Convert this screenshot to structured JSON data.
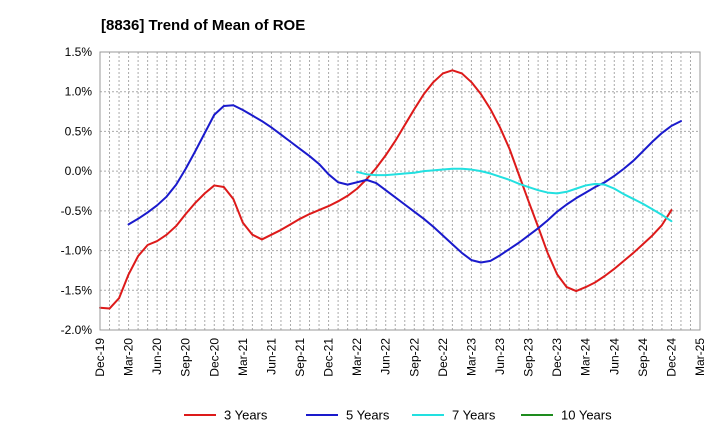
{
  "chart_data": {
    "type": "line",
    "title": "[8836]  Trend of Mean of ROE",
    "xlabel": "",
    "ylabel": "",
    "x_ticks": [
      "Dec-19",
      "Mar-20",
      "Jun-20",
      "Sep-20",
      "Dec-20",
      "Mar-21",
      "Jun-21",
      "Sep-21",
      "Dec-21",
      "Mar-22",
      "Jun-22",
      "Sep-22",
      "Dec-22",
      "Mar-23",
      "Jun-23",
      "Sep-23",
      "Dec-23",
      "Mar-24",
      "Jun-24",
      "Sep-24",
      "Dec-24",
      "Mar-25"
    ],
    "y_ticks": [
      1.5,
      1.0,
      0.5,
      0.0,
      -0.5,
      -1.0,
      -1.5,
      -2.0
    ],
    "y_tick_labels": [
      "1.5%",
      "1.0%",
      "0.5%",
      "0.0%",
      "-0.5%",
      "-1.0%",
      "-1.5%",
      "-2.0%"
    ],
    "ylim": [
      -2.0,
      1.5
    ],
    "grid": true,
    "legend_position": "bottom",
    "series": [
      {
        "name": "3 Years",
        "color": "#dd1a1a",
        "points": [
          [
            "Dec-19",
            -1.72
          ],
          [
            "Jan-20",
            -1.73
          ],
          [
            "Feb-20",
            -1.6
          ],
          [
            "Mar-20",
            -1.3
          ],
          [
            "Apr-20",
            -1.07
          ],
          [
            "May-20",
            -0.93
          ],
          [
            "Jun-20",
            -0.88
          ],
          [
            "Jul-20",
            -0.8
          ],
          [
            "Aug-20",
            -0.69
          ],
          [
            "Sep-20",
            -0.54
          ],
          [
            "Oct-20",
            -0.4
          ],
          [
            "Nov-20",
            -0.28
          ],
          [
            "Dec-20",
            -0.18
          ],
          [
            "Jan-21",
            -0.2
          ],
          [
            "Feb-21",
            -0.35
          ],
          [
            "Mar-21",
            -0.65
          ],
          [
            "Apr-21",
            -0.8
          ],
          [
            "May-21",
            -0.86
          ],
          [
            "Jun-21",
            -0.8
          ],
          [
            "Jul-21",
            -0.74
          ],
          [
            "Aug-21",
            -0.67
          ],
          [
            "Sep-21",
            -0.6
          ],
          [
            "Oct-21",
            -0.54
          ],
          [
            "Nov-21",
            -0.49
          ],
          [
            "Dec-21",
            -0.44
          ],
          [
            "Jan-22",
            -0.38
          ],
          [
            "Feb-22",
            -0.31
          ],
          [
            "Mar-22",
            -0.22
          ],
          [
            "Apr-22",
            -0.1
          ],
          [
            "May-22",
            0.04
          ],
          [
            "Jun-22",
            0.2
          ],
          [
            "Jul-22",
            0.38
          ],
          [
            "Aug-22",
            0.58
          ],
          [
            "Sep-22",
            0.78
          ],
          [
            "Oct-22",
            0.97
          ],
          [
            "Nov-22",
            1.12
          ],
          [
            "Dec-22",
            1.23
          ],
          [
            "Jan-23",
            1.27
          ],
          [
            "Feb-23",
            1.23
          ],
          [
            "Mar-23",
            1.12
          ],
          [
            "Apr-23",
            0.97
          ],
          [
            "May-23",
            0.78
          ],
          [
            "Jun-23",
            0.55
          ],
          [
            "Jul-23",
            0.28
          ],
          [
            "Aug-23",
            -0.05
          ],
          [
            "Sep-23",
            -0.38
          ],
          [
            "Oct-23",
            -0.7
          ],
          [
            "Nov-23",
            -1.03
          ],
          [
            "Dec-23",
            -1.3
          ],
          [
            "Jan-24",
            -1.46
          ],
          [
            "Feb-24",
            -1.51
          ],
          [
            "Mar-24",
            -1.46
          ],
          [
            "Apr-24",
            -1.4
          ],
          [
            "May-24",
            -1.32
          ],
          [
            "Jun-24",
            -1.23
          ],
          [
            "Jul-24",
            -1.13
          ],
          [
            "Aug-24",
            -1.03
          ],
          [
            "Sep-24",
            -0.92
          ],
          [
            "Oct-24",
            -0.81
          ],
          [
            "Nov-24",
            -0.68
          ],
          [
            "Dec-24",
            -0.49
          ]
        ]
      },
      {
        "name": "5 Years",
        "color": "#1a1acc",
        "points": [
          [
            "Mar-20",
            -0.67
          ],
          [
            "Apr-20",
            -0.6
          ],
          [
            "May-20",
            -0.52
          ],
          [
            "Jun-20",
            -0.43
          ],
          [
            "Jul-20",
            -0.32
          ],
          [
            "Aug-20",
            -0.17
          ],
          [
            "Sep-20",
            0.03
          ],
          [
            "Oct-20",
            0.25
          ],
          [
            "Nov-20",
            0.48
          ],
          [
            "Dec-20",
            0.71
          ],
          [
            "Jan-21",
            0.82
          ],
          [
            "Feb-21",
            0.83
          ],
          [
            "Mar-21",
            0.77
          ],
          [
            "Apr-21",
            0.7
          ],
          [
            "May-21",
            0.63
          ],
          [
            "Jun-21",
            0.55
          ],
          [
            "Jul-21",
            0.46
          ],
          [
            "Aug-21",
            0.37
          ],
          [
            "Sep-21",
            0.28
          ],
          [
            "Oct-21",
            0.19
          ],
          [
            "Nov-21",
            0.09
          ],
          [
            "Dec-21",
            -0.04
          ],
          [
            "Jan-22",
            -0.14
          ],
          [
            "Feb-22",
            -0.17
          ],
          [
            "Mar-22",
            -0.14
          ],
          [
            "Apr-22",
            -0.11
          ],
          [
            "May-22",
            -0.15
          ],
          [
            "Jun-22",
            -0.24
          ],
          [
            "Jul-22",
            -0.33
          ],
          [
            "Aug-22",
            -0.42
          ],
          [
            "Sep-22",
            -0.51
          ],
          [
            "Oct-22",
            -0.6
          ],
          [
            "Nov-22",
            -0.7
          ],
          [
            "Dec-22",
            -0.81
          ],
          [
            "Jan-23",
            -0.92
          ],
          [
            "Feb-23",
            -1.03
          ],
          [
            "Mar-23",
            -1.12
          ],
          [
            "Apr-23",
            -1.15
          ],
          [
            "May-23",
            -1.13
          ],
          [
            "Jun-23",
            -1.06
          ],
          [
            "Jul-23",
            -0.98
          ],
          [
            "Aug-23",
            -0.9
          ],
          [
            "Sep-23",
            -0.81
          ],
          [
            "Oct-23",
            -0.72
          ],
          [
            "Nov-23",
            -0.62
          ],
          [
            "Dec-23",
            -0.51
          ],
          [
            "Jan-24",
            -0.42
          ],
          [
            "Feb-24",
            -0.34
          ],
          [
            "Mar-24",
            -0.27
          ],
          [
            "Apr-24",
            -0.2
          ],
          [
            "May-24",
            -0.14
          ],
          [
            "Jun-24",
            -0.06
          ],
          [
            "Jul-24",
            0.03
          ],
          [
            "Aug-24",
            0.13
          ],
          [
            "Sep-24",
            0.25
          ],
          [
            "Oct-24",
            0.37
          ],
          [
            "Nov-24",
            0.48
          ],
          [
            "Dec-24",
            0.57
          ],
          [
            "Jan-25",
            0.63
          ]
        ]
      },
      {
        "name": "7 Years",
        "color": "#22e0e0",
        "points": [
          [
            "Mar-22",
            -0.01
          ],
          [
            "Apr-22",
            -0.04
          ],
          [
            "May-22",
            -0.05
          ],
          [
            "Jun-22",
            -0.05
          ],
          [
            "Jul-22",
            -0.04
          ],
          [
            "Aug-22",
            -0.03
          ],
          [
            "Sep-22",
            -0.02
          ],
          [
            "Oct-22",
            0.0
          ],
          [
            "Nov-22",
            0.01
          ],
          [
            "Dec-22",
            0.02
          ],
          [
            "Jan-23",
            0.03
          ],
          [
            "Feb-23",
            0.03
          ],
          [
            "Mar-23",
            0.02
          ],
          [
            "Apr-23",
            0.0
          ],
          [
            "May-23",
            -0.03
          ],
          [
            "Jun-23",
            -0.07
          ],
          [
            "Jul-23",
            -0.11
          ],
          [
            "Aug-23",
            -0.16
          ],
          [
            "Sep-23",
            -0.2
          ],
          [
            "Oct-23",
            -0.24
          ],
          [
            "Nov-23",
            -0.27
          ],
          [
            "Dec-23",
            -0.28
          ],
          [
            "Jan-24",
            -0.26
          ],
          [
            "Feb-24",
            -0.22
          ],
          [
            "Mar-24",
            -0.18
          ],
          [
            "Apr-24",
            -0.16
          ],
          [
            "May-24",
            -0.17
          ],
          [
            "Jun-24",
            -0.22
          ],
          [
            "Jul-24",
            -0.29
          ],
          [
            "Aug-24",
            -0.35
          ],
          [
            "Sep-24",
            -0.41
          ],
          [
            "Oct-24",
            -0.48
          ],
          [
            "Nov-24",
            -0.55
          ],
          [
            "Dec-24",
            -0.63
          ]
        ]
      },
      {
        "name": "10 Years",
        "color": "#1e8c1e",
        "points": []
      }
    ]
  }
}
